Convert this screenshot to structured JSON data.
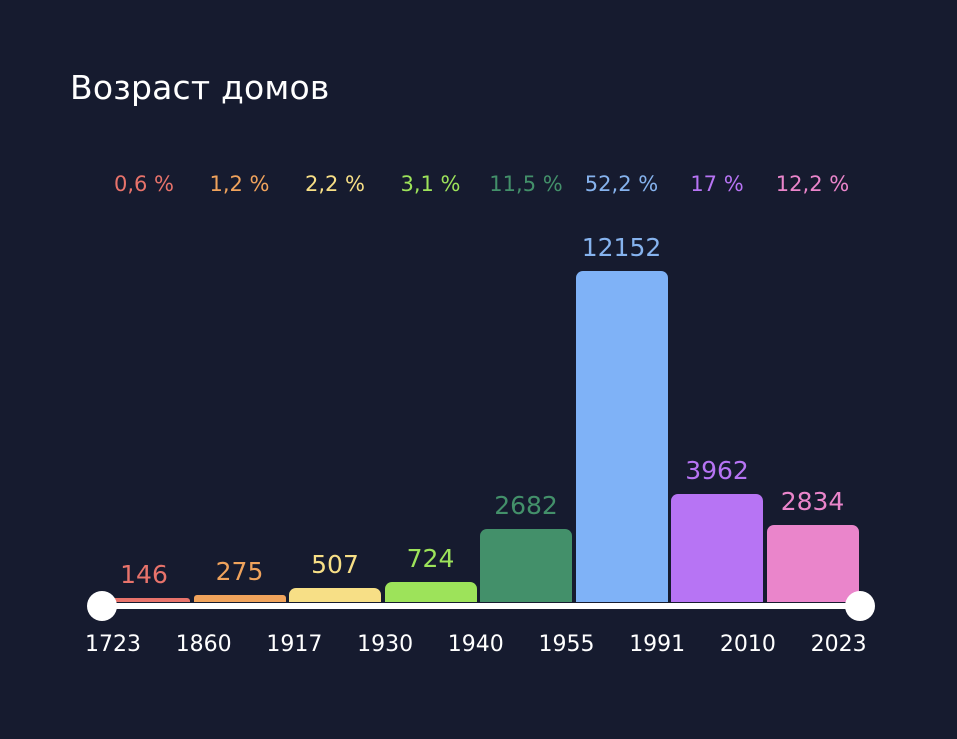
{
  "header": {
    "title": "Возраст домов"
  },
  "chart_data": {
    "type": "bar",
    "title": "Возраст домов",
    "xlabel": "",
    "ylabel": "",
    "grid": false,
    "legend": "none",
    "year_ticks": [
      "1723",
      "1860",
      "1917",
      "1930",
      "1940",
      "1955",
      "1991",
      "2010",
      "2023"
    ],
    "categories": [
      "1723–1860",
      "1860–1917",
      "1917–1930",
      "1930–1940",
      "1940–1955",
      "1955–1991",
      "1991–2010",
      "2010–2023"
    ],
    "values": [
      146,
      275,
      507,
      724,
      2682,
      12152,
      3962,
      2834
    ],
    "percentages": [
      "0,6 %",
      "1,2 %",
      "2,2 %",
      "3,1 %",
      "11,5 %",
      "52,2 %",
      "17 %",
      "12,2 %"
    ],
    "value_labels": [
      "146",
      "275",
      "507",
      "724",
      "2682",
      "12152",
      "3962",
      "2834"
    ],
    "colors": [
      "#e8736b",
      "#f0a35c",
      "#f7df86",
      "#9de35a",
      "#43906a",
      "#7fb2f7",
      "#b774f4",
      "#ea85cb"
    ],
    "label_colors": [
      "#e8736b",
      "#f0a35c",
      "#f7df86",
      "#9de35a",
      "#43906a",
      "#86b3ee",
      "#b774f4",
      "#ea85cb"
    ],
    "ylim": [
      0,
      12152
    ]
  },
  "slider": {
    "min": "1723",
    "max": "2023"
  }
}
